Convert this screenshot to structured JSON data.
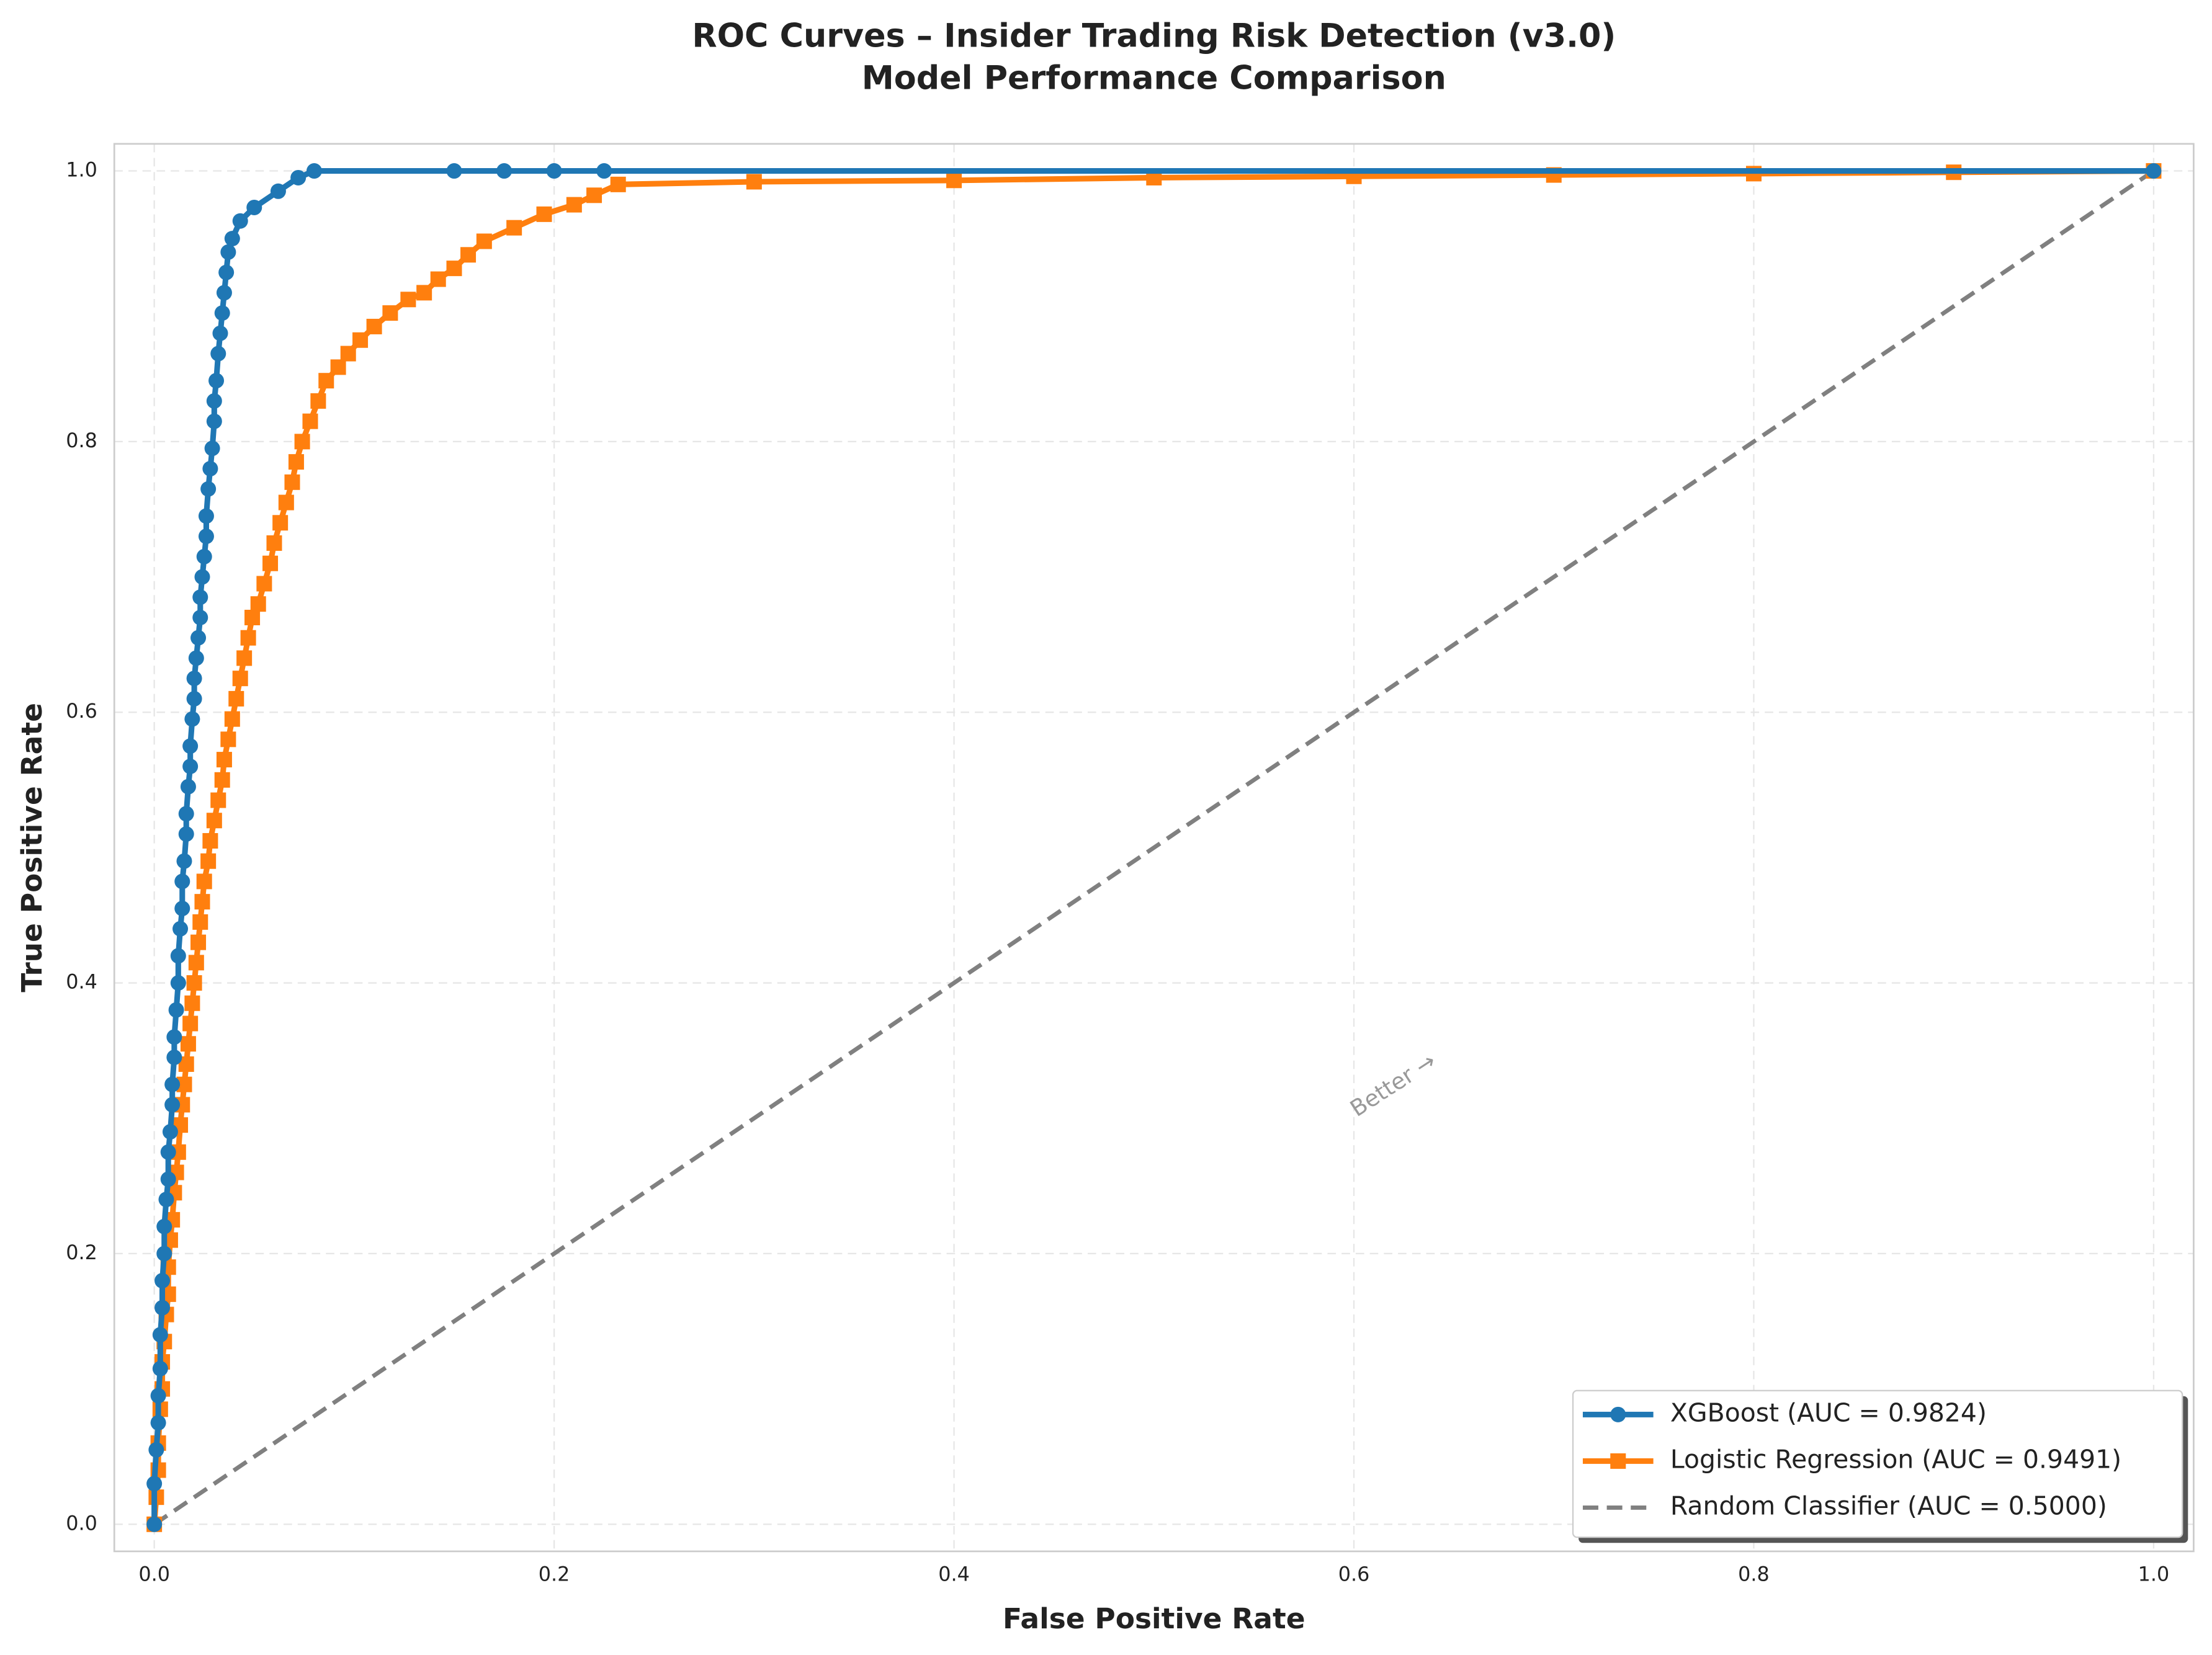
{
  "chart_data": {
    "type": "line",
    "title": "ROC Curves – Insider Trading Risk Detection (v3.0)",
    "subtitle": "Model Performance Comparison",
    "x_label": "False Positive Rate",
    "y_label": "True Positive Rate",
    "annotation": "Better →",
    "xlim": [
      -0.02,
      1.02
    ],
    "ylim": [
      -0.02,
      1.02
    ],
    "xticks": [
      {
        "value": 0,
        "label": "0.0"
      },
      0.2,
      0.4,
      0.6,
      0.8,
      {
        "value": 1,
        "label": "1.0"
      }
    ],
    "yticks": [
      {
        "value": 0,
        "label": "0.0"
      },
      0.2,
      0.4,
      0.6,
      0.8,
      {
        "value": 1,
        "label": "1.0"
      }
    ],
    "grid": true,
    "legend": "lower right",
    "series": [
      {
        "name": "XGBoost (AUC = 0.9824)",
        "color": "#1f77b4",
        "marker": "circle",
        "linestyle": "solid",
        "x": [
          0,
          0,
          0.001,
          0.002,
          0.002,
          0.003,
          0.003,
          0.004,
          0.004,
          0.005,
          0.005,
          0.006,
          0.007,
          0.007,
          0.008,
          0.009,
          0.009,
          0.01,
          0.01,
          0.011,
          0.012,
          0.012,
          0.013,
          0.014,
          0.014,
          0.015,
          0.016,
          0.016,
          0.017,
          0.018,
          0.018,
          0.019,
          0.02,
          0.02,
          0.021,
          0.022,
          0.023,
          0.023,
          0.024,
          0.025,
          0.026,
          0.026,
          0.027,
          0.028,
          0.029,
          0.03,
          0.03,
          0.031,
          0.032,
          0.033,
          0.034,
          0.035,
          0.036,
          0.037,
          0.039,
          0.043,
          0.05,
          0.062,
          0.072,
          0.08,
          0.15,
          0.175,
          0.2,
          0.225,
          1
        ],
        "values": [
          0,
          0.03,
          0.055,
          0.075,
          0.095,
          0.115,
          0.14,
          0.16,
          0.18,
          0.2,
          0.22,
          0.24,
          0.255,
          0.275,
          0.29,
          0.31,
          0.325,
          0.345,
          0.36,
          0.38,
          0.4,
          0.42,
          0.44,
          0.455,
          0.475,
          0.49,
          0.51,
          0.525,
          0.545,
          0.56,
          0.575,
          0.595,
          0.61,
          0.625,
          0.64,
          0.655,
          0.67,
          0.685,
          0.7,
          0.715,
          0.73,
          0.745,
          0.765,
          0.78,
          0.795,
          0.815,
          0.83,
          0.845,
          0.865,
          0.88,
          0.895,
          0.91,
          0.925,
          0.94,
          0.95,
          0.963,
          0.973,
          0.985,
          0.995,
          1,
          1,
          1,
          1,
          1,
          1
        ]
      },
      {
        "name": "Logistic Regression (AUC = 0.9491)",
        "color": "#ff7f0e",
        "marker": "square",
        "linestyle": "solid",
        "x": [
          0,
          0.001,
          0.002,
          0.002,
          0.003,
          0.004,
          0.004,
          0.005,
          0.006,
          0.007,
          0.007,
          0.008,
          0.009,
          0.01,
          0.011,
          0.012,
          0.013,
          0.014,
          0.015,
          0.016,
          0.017,
          0.018,
          0.019,
          0.02,
          0.021,
          0.022,
          0.023,
          0.024,
          0.025,
          0.027,
          0.028,
          0.03,
          0.032,
          0.034,
          0.035,
          0.037,
          0.039,
          0.041,
          0.043,
          0.045,
          0.047,
          0.049,
          0.052,
          0.055,
          0.058,
          0.06,
          0.063,
          0.066,
          0.069,
          0.071,
          0.074,
          0.078,
          0.082,
          0.086,
          0.092,
          0.097,
          0.103,
          0.11,
          0.118,
          0.127,
          0.135,
          0.142,
          0.15,
          0.157,
          0.165,
          0.18,
          0.195,
          0.21,
          0.22,
          0.232,
          0.3,
          0.4,
          0.5,
          0.6,
          0.7,
          0.8,
          0.9,
          1
        ],
        "values": [
          0,
          0.02,
          0.04,
          0.06,
          0.085,
          0.1,
          0.12,
          0.135,
          0.155,
          0.17,
          0.19,
          0.21,
          0.225,
          0.245,
          0.26,
          0.275,
          0.295,
          0.31,
          0.325,
          0.34,
          0.355,
          0.37,
          0.385,
          0.4,
          0.415,
          0.43,
          0.445,
          0.46,
          0.475,
          0.49,
          0.505,
          0.52,
          0.535,
          0.55,
          0.565,
          0.58,
          0.595,
          0.61,
          0.625,
          0.64,
          0.655,
          0.67,
          0.68,
          0.695,
          0.71,
          0.725,
          0.74,
          0.755,
          0.77,
          0.785,
          0.8,
          0.815,
          0.83,
          0.845,
          0.855,
          0.865,
          0.875,
          0.885,
          0.895,
          0.905,
          0.91,
          0.92,
          0.928,
          0.938,
          0.948,
          0.958,
          0.968,
          0.975,
          0.982,
          0.99,
          0.992,
          0.993,
          0.995,
          0.996,
          0.997,
          0.998,
          0.999,
          1
        ]
      },
      {
        "name": "Random Classifier (AUC = 0.5000)",
        "color": "#808080",
        "marker": "none",
        "linestyle": "dashed",
        "x": [
          0,
          1
        ],
        "values": [
          0,
          1
        ]
      }
    ]
  }
}
